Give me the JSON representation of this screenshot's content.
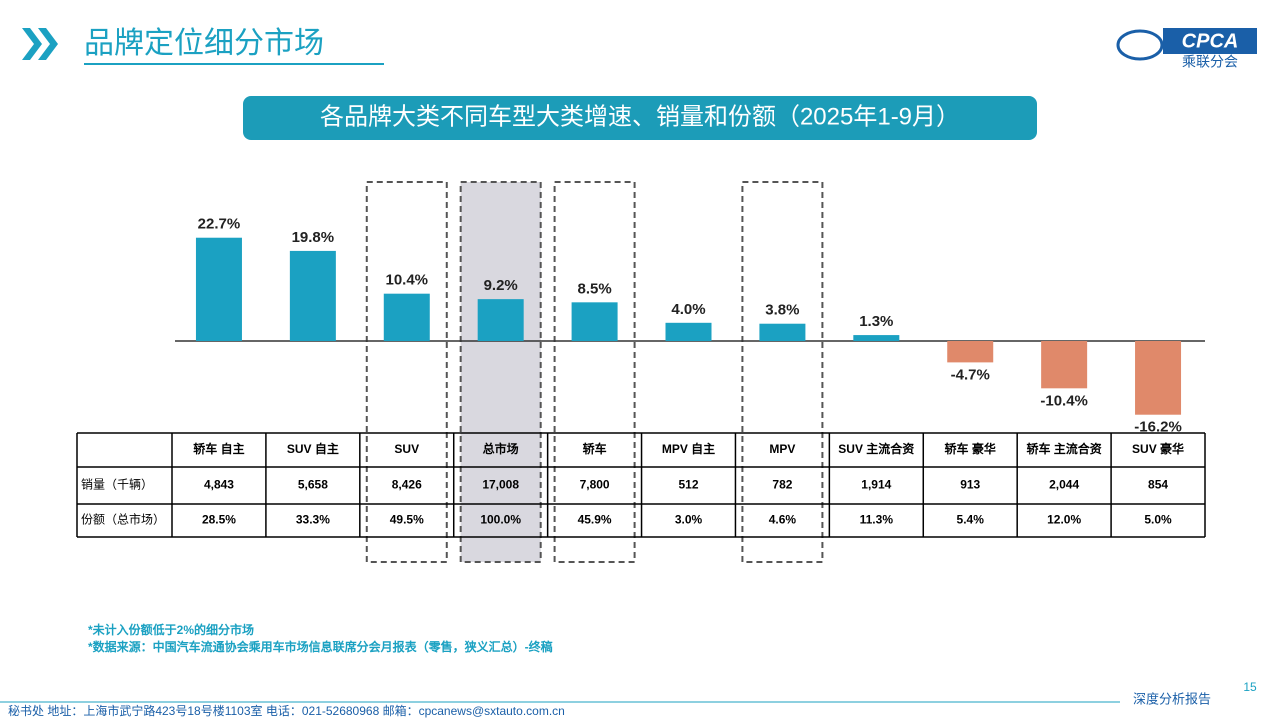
{
  "header": {
    "title": "品牌定位细分市场",
    "logo_text": "CPCA",
    "logo_subtext": "乘联分会"
  },
  "chart_data": {
    "type": "bar",
    "title": "各品牌大类不同车型大类增速、销量和份额（2025年1-9月）",
    "categories": [
      "轿车 自主",
      "SUV 自主",
      "SUV",
      "总市场",
      "轿车",
      "MPV 自主",
      "MPV",
      "SUV 主流合资",
      "轿车 豪华",
      "轿车 主流合资",
      "SUV 豪华"
    ],
    "values": [
      22.7,
      19.8,
      10.4,
      9.2,
      8.5,
      4.0,
      3.8,
      1.3,
      -4.7,
      -10.4,
      -16.2
    ],
    "value_labels": [
      "22.7%",
      "19.8%",
      "10.4%",
      "9.2%",
      "8.5%",
      "4.0%",
      "3.8%",
      "1.3%",
      "-4.7%",
      "-10.4%",
      "-16.2%"
    ],
    "positive_color": "#1ba1c2",
    "negative_color": "#e0896a"
  },
  "table": {
    "row_headers": [
      "销量（千辆）",
      "份额（总市场）"
    ],
    "rows": [
      [
        "4,843",
        "5,658",
        "8,426",
        "17,008",
        "7,800",
        "512",
        "782",
        "1,914",
        "913",
        "2,044",
        "854"
      ],
      [
        "28.5%",
        "33.3%",
        "49.5%",
        "100.0%",
        "45.9%",
        "3.0%",
        "4.6%",
        "11.3%",
        "5.4%",
        "12.0%",
        "5.0%"
      ]
    ]
  },
  "notes": [
    "*未计入份额低于2%的细分市场",
    "*数据来源：中国汽车流通协会乘用车市场信息联席分会月报表（零售，狭义汇总）-终稿"
  ],
  "footer": {
    "address": "秘书处   地址：上海市武宁路423号18号楼1103室  电话：021-52680968   邮箱：cpcanews@sxtauto.com.cn",
    "report": "深度分析报告",
    "page": "15"
  }
}
